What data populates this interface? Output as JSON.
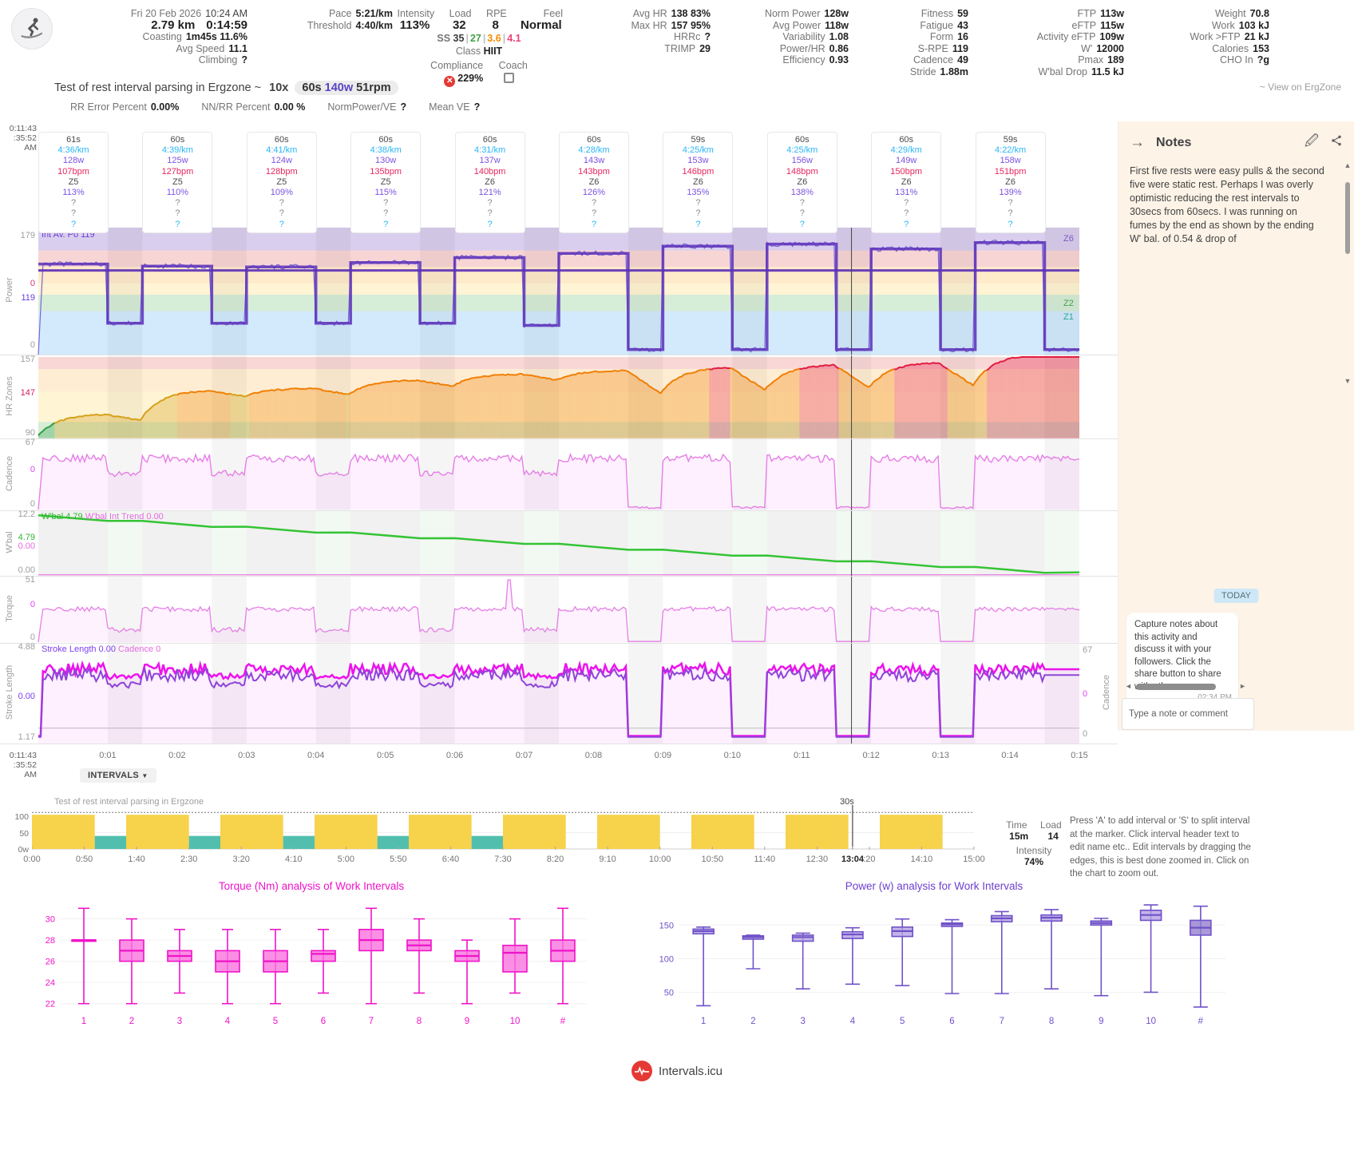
{
  "header": {
    "col1": {
      "date": "Fri 20 Feb 2026",
      "start_time": "10:24 AM",
      "distance": "2.79 km",
      "duration": "0:14:59",
      "rows": [
        {
          "label": "Coasting",
          "value": "1m45s 11.6%"
        },
        {
          "label": "Avg Speed",
          "value": "11.1"
        },
        {
          "label": "Climbing",
          "value": "?"
        }
      ]
    },
    "col2": {
      "rows": [
        {
          "label": "Pace",
          "value": "5:21/km"
        },
        {
          "label": "Threshold",
          "value": "4:40/km"
        }
      ]
    },
    "col3": {
      "metrics": [
        {
          "label": "Intensity",
          "value": "113%"
        },
        {
          "label": "Load",
          "value": "32"
        },
        {
          "label": "RPE",
          "value": "8"
        },
        {
          "label": "Feel",
          "value": "Normal"
        }
      ],
      "ss_label": "SS",
      "ss_parts": [
        {
          "value": "35",
          "color": "#3a3a3a"
        },
        {
          "value": "27",
          "color": "#43a047"
        },
        {
          "value": "3.6",
          "color": "#fb8c00"
        },
        {
          "value": "4.1",
          "color": "#ec407a"
        }
      ],
      "class_label": "Class",
      "class_value": "HIIT",
      "compliance_label": "Compliance",
      "coach_label": "Coach",
      "compliance_value": "229%"
    },
    "col4": {
      "rows": [
        {
          "label": "Avg HR",
          "value": "138 83%"
        },
        {
          "label": "Max HR",
          "value": "157 95%"
        },
        {
          "label": "HRRc",
          "value": "?"
        },
        {
          "label": "TRIMP",
          "value": "29"
        }
      ]
    },
    "col5": {
      "rows": [
        {
          "label": "Norm Power",
          "value": "128w"
        },
        {
          "label": "Avg Power",
          "value": "118w"
        },
        {
          "label": "Variability",
          "value": "1.08"
        },
        {
          "label": "Power/HR",
          "value": "0.86"
        },
        {
          "label": "Efficiency",
          "value": "0.93"
        }
      ]
    },
    "col6": {
      "rows": [
        {
          "label": "Fitness",
          "value": "59"
        },
        {
          "label": "Fatigue",
          "value": "43"
        },
        {
          "label": "Form",
          "value": "16"
        },
        {
          "label": "S-RPE",
          "value": "119"
        },
        {
          "label": "Cadence",
          "value": "49"
        },
        {
          "label": "Stride",
          "value": "1.88m"
        }
      ]
    },
    "col7": {
      "rows": [
        {
          "label": "FTP",
          "value": "113w"
        },
        {
          "label": "eFTP",
          "value": "115w"
        },
        {
          "label": "Activity eFTP",
          "value": "109w"
        },
        {
          "label": "W'",
          "value": "12000"
        },
        {
          "label": "Pmax",
          "value": "189"
        },
        {
          "label": "W'bal Drop",
          "value": "11.5 kJ"
        }
      ]
    },
    "col8": {
      "rows": [
        {
          "label": "Weight",
          "value": "70.8"
        },
        {
          "label": "Work",
          "value": "103 kJ"
        },
        {
          "label": "Work >FTP",
          "value": "21 kJ"
        },
        {
          "label": "Calories",
          "value": "153"
        },
        {
          "label": "CHO In",
          "value": "?g"
        }
      ]
    }
  },
  "title_row": {
    "title": "Test of rest interval parsing in Ergzone",
    "sep": "~",
    "reps": "10x",
    "chip_dur": "60s",
    "chip_power": "140w",
    "chip_cadence": "51rpm",
    "view_link": "~ View on ErgZone"
  },
  "stats_row": {
    "items": [
      {
        "label": "RR Error Percent",
        "value": "0.00%"
      },
      {
        "label": "NN/RR Percent",
        "value": "0.00 %"
      },
      {
        "label": "NormPower/VE",
        "value": "?"
      },
      {
        "label": "Mean VE",
        "value": "?"
      }
    ]
  },
  "intervals": [
    {
      "duration": "61s",
      "pace": "4:36/km",
      "power": "128w",
      "hr": "107bpm",
      "zone": "Z5",
      "pct": "113%",
      "u1": "?",
      "u2": "?",
      "u3": "?"
    },
    {
      "duration": "60s",
      "pace": "4:39/km",
      "power": "125w",
      "hr": "127bpm",
      "zone": "Z5",
      "pct": "110%",
      "u1": "?",
      "u2": "?",
      "u3": "?"
    },
    {
      "duration": "60s",
      "pace": "4:41/km",
      "power": "124w",
      "hr": "128bpm",
      "zone": "Z5",
      "pct": "109%",
      "u1": "?",
      "u2": "?",
      "u3": "?"
    },
    {
      "duration": "60s",
      "pace": "4:38/km",
      "power": "130w",
      "hr": "135bpm",
      "zone": "Z5",
      "pct": "115%",
      "u1": "?",
      "u2": "?",
      "u3": "?"
    },
    {
      "duration": "60s",
      "pace": "4:31/km",
      "power": "137w",
      "hr": "140bpm",
      "zone": "Z6",
      "pct": "121%",
      "u1": "?",
      "u2": "?",
      "u3": "?"
    },
    {
      "duration": "60s",
      "pace": "4:28/km",
      "power": "143w",
      "hr": "143bpm",
      "zone": "Z6",
      "pct": "126%",
      "u1": "?",
      "u2": "?",
      "u3": "?"
    },
    {
      "duration": "59s",
      "pace": "4:25/km",
      "power": "153w",
      "hr": "146bpm",
      "zone": "Z6",
      "pct": "135%",
      "u1": "?",
      "u2": "?",
      "u3": "?"
    },
    {
      "duration": "60s",
      "pace": "4:25/km",
      "power": "156w",
      "hr": "148bpm",
      "zone": "Z6",
      "pct": "138%",
      "u1": "?",
      "u2": "?",
      "u3": "?"
    },
    {
      "duration": "60s",
      "pace": "4:29/km",
      "power": "149w",
      "hr": "150bpm",
      "zone": "Z6",
      "pct": "131%",
      "u1": "?",
      "u2": "?",
      "u3": "?"
    },
    {
      "duration": "59s",
      "pace": "4:22/km",
      "power": "158w",
      "hr": "151bpm",
      "zone": "Z6",
      "pct": "139%",
      "u1": "?",
      "u2": "?",
      "u3": "?"
    }
  ],
  "main_chart": {
    "readout_line1": "0:11:43",
    "readout_line2": ":35:52 AM",
    "cursor_t": 703,
    "x_ticks": [
      "0:01",
      "0:02",
      "0:03",
      "0:04",
      "0:05",
      "0:06",
      "0:07",
      "0:08",
      "0:09",
      "0:10",
      "0:11",
      "0:12",
      "0:13",
      "0:14",
      "0:15"
    ],
    "intervals_button": "INTERVALS",
    "panels": {
      "power": {
        "label": "Power",
        "overlay": "Int Av. Po 119",
        "zone_labels": [
          "Z6",
          "Z2",
          "Z1"
        ],
        "axis": [
          {
            "t": "179",
            "c": "#9e9e9e",
            "p": 0.06
          },
          {
            "t": "0",
            "c": "#e0356e",
            "p": 0.44
          },
          {
            "t": "119",
            "c": "#6a3fd6",
            "p": 0.55
          },
          {
            "t": "0",
            "c": "#9e9e9e",
            "p": 0.92
          }
        ]
      },
      "hr": {
        "label": "HR Zones",
        "axis": [
          {
            "t": "157",
            "c": "#9e9e9e",
            "p": 0.05
          },
          {
            "t": "147",
            "c": "#d81b60",
            "p": 0.45
          },
          {
            "t": "90",
            "c": "#9e9e9e",
            "p": 0.92
          }
        ]
      },
      "cadence": {
        "label": "Cadence",
        "axis": [
          {
            "t": "67",
            "c": "#9e9e9e",
            "p": 0.04
          },
          {
            "t": "0",
            "c": "#e040fb",
            "p": 0.42
          },
          {
            "t": "0",
            "c": "#9e9e9e",
            "p": 0.9
          }
        ]
      },
      "wbal": {
        "label": "W'bal",
        "overlay_a": "W'bal 4.79",
        "overlay_b": "W'bal Int Trend 0.00",
        "axis": [
          {
            "t": "12.2",
            "c": "#9e9e9e",
            "p": 0.05
          },
          {
            "t": "4.79",
            "c": "#2fb52f",
            "p": 0.4
          },
          {
            "t": "0.00",
            "c": "#e868e0",
            "p": 0.54
          },
          {
            "t": "0.00",
            "c": "#9e9e9e",
            "p": 0.9
          }
        ]
      },
      "torque": {
        "label": "Torque",
        "axis": [
          {
            "t": "51",
            "c": "#9e9e9e",
            "p": 0.05
          },
          {
            "t": "0",
            "c": "#e040fb",
            "p": 0.42
          },
          {
            "t": "0",
            "c": "#9e9e9e",
            "p": 0.91
          }
        ]
      },
      "stroke": {
        "label": "Stroke Length",
        "overlay_a": "Stroke Length 0.00",
        "overlay_b": "Cadence 0",
        "axis": [
          {
            "t": "4.88",
            "c": "#9e9e9e",
            "p": 0.03
          },
          {
            "t": "0.00",
            "c": "#7e3ff2",
            "p": 0.52
          },
          {
            "t": "1.17",
            "c": "#9e9e9e",
            "p": 0.93
          }
        ],
        "raxis": [
          {
            "t": "67",
            "c": "#9e9e9e",
            "p": 0.06
          },
          {
            "t": "0",
            "c": "#e040fb",
            "p": 0.5
          },
          {
            "t": "0",
            "c": "#9e9e9e",
            "p": 0.9
          }
        ],
        "right_label": "Cadence"
      }
    }
  },
  "notes": {
    "header": "Notes",
    "body": "First five rests were easy pulls & the second five were static rest. Perhaps I was overly optimistic reducing the rest intervals to 30secs from 60secs. I was running on fumes by the end as shown by the ending W' bal. of 0.54 & drop of",
    "today": "TODAY",
    "bubble": "Capture notes about this activity and discuss it with your followers. Click the share button to share with others.",
    "bubble_time": "02:34 PM",
    "input_placeholder": "Type a note or comment"
  },
  "timeline": {
    "chart_label": "Test of rest interval parsing in Ergzone",
    "marker_label": "30s",
    "y_labels": [
      "100",
      "50",
      "0w"
    ],
    "x_labels": [
      {
        "t": 0,
        "text": "0:00"
      },
      {
        "t": 50,
        "text": "0:50"
      },
      {
        "t": 100,
        "text": "1:40"
      },
      {
        "t": 150,
        "text": "2:30"
      },
      {
        "t": 200,
        "text": "3:20"
      },
      {
        "t": 250,
        "text": "4:10"
      },
      {
        "t": 300,
        "text": "5:00"
      },
      {
        "t": 350,
        "text": "5:50"
      },
      {
        "t": 400,
        "text": "6:40"
      },
      {
        "t": 450,
        "text": "7:30"
      },
      {
        "t": 500,
        "text": "8:20"
      },
      {
        "t": 550,
        "text": "9:10"
      },
      {
        "t": 600,
        "text": "10:00"
      },
      {
        "t": 650,
        "text": "10:50"
      },
      {
        "t": 700,
        "text": "11:40"
      },
      {
        "t": 750,
        "text": "12:30"
      },
      {
        "t": 784,
        "text": "13:04",
        "current": true
      },
      {
        "t": 800,
        "text": ":20"
      },
      {
        "t": 850,
        "text": "14:10"
      },
      {
        "t": 900,
        "text": "15:00"
      }
    ],
    "time_label": "Time",
    "load_label": "Load",
    "time_value": "15m",
    "load_value": "14",
    "intensity_label": "Intensity",
    "intensity_value": "74%",
    "help_text": "Press 'A' to add interval or 'S' to split interval at the marker. Click interval header text to edit name etc.. Edit intervals by dragging the edges, this is best done zoomed in. Click on the chart to zoom out."
  },
  "footer": {
    "brand": "Intervals.icu"
  },
  "chart_data": [
    {
      "type": "line",
      "title": "Power trace",
      "ylim": [
        0,
        179
      ],
      "total_s": 900,
      "work_dur_s": 60,
      "rest_dur_s": 30,
      "work_power_w": [
        128,
        125,
        124,
        130,
        137,
        143,
        153,
        156,
        149,
        158
      ],
      "rest_power_w": [
        45,
        45,
        45,
        45,
        42,
        8,
        8,
        8,
        8
      ],
      "interval_avg_w": 119
    },
    {
      "type": "line",
      "title": "Heart rate trace",
      "ylim": [
        90,
        157
      ],
      "start_bpm": 90,
      "work_peak_bpm": [
        107,
        127,
        128,
        135,
        140,
        143,
        146,
        148,
        150,
        157
      ]
    },
    {
      "type": "line",
      "title": "Cadence trace",
      "ylim": [
        0,
        67
      ],
      "work_rpm": 51,
      "rest_rpm_early": 36,
      "rest_rpm_late": 1
    },
    {
      "type": "line",
      "title": "W'bal trace",
      "ylim": [
        0,
        12.2
      ],
      "start_kj": 12.0,
      "work_drop_kj": 1.17,
      "rest_gain_kj": 0.02,
      "end_kj": 0.54
    },
    {
      "type": "line",
      "title": "Torque trace",
      "ylim": [
        0,
        51
      ],
      "work_nm": 27,
      "rest_nm_early": 10,
      "rest_nm_late": 0.5,
      "spike_nm": 51,
      "spike_at_s": 407
    },
    {
      "type": "line",
      "title": "Stroke length trace",
      "ylim": [
        1.0,
        5.0
      ],
      "work_m": 4.05,
      "rest_m_early": 3.75,
      "rest_m_late": 1.22,
      "cadence_work_rpm": 47,
      "cadence_rest_early_rpm": 40,
      "cadence_rest_late_rpm": 3,
      "cadence_ylim": [
        0,
        67
      ]
    },
    {
      "type": "bar",
      "title": "Interval timeline",
      "ylim": [
        0,
        125
      ],
      "target_w": 112,
      "work_w": 105,
      "rest_w_early": 40,
      "rest_w_late": 0
    },
    {
      "type": "box",
      "title": "Torque (Nm) analysis of Work Intervals",
      "categories": [
        "1",
        "2",
        "3",
        "4",
        "5",
        "6",
        "7",
        "8",
        "9",
        "10",
        "#"
      ],
      "format": "[low, q1, median, q3, high]",
      "values": [
        [
          22,
          28,
          28,
          28,
          31
        ],
        [
          22,
          26,
          27,
          28,
          30
        ],
        [
          23,
          26,
          26.5,
          27,
          29
        ],
        [
          22,
          25,
          26,
          27,
          29
        ],
        [
          22,
          25,
          26,
          27,
          29
        ],
        [
          23,
          26,
          26.7,
          27,
          29
        ],
        [
          22,
          27,
          28,
          29,
          31
        ],
        [
          23,
          27,
          27.5,
          28,
          30
        ],
        [
          22,
          26,
          26.5,
          27,
          28
        ],
        [
          23,
          25,
          26.8,
          27.5,
          30
        ],
        [
          22,
          26,
          27,
          28,
          31
        ]
      ],
      "yticks": [
        22,
        24,
        26,
        28,
        30
      ],
      "ylim": [
        21.3,
        31.7
      ]
    },
    {
      "type": "box",
      "title": "Power (w) analysis for Work Intervals",
      "categories": [
        "1",
        "2",
        "3",
        "4",
        "5",
        "6",
        "7",
        "8",
        "9",
        "10",
        "#"
      ],
      "format": "[low, q1, median, q3, high]",
      "values": [
        [
          30,
          137,
          141,
          144,
          147
        ],
        [
          85,
          129,
          132,
          134,
          135
        ],
        [
          55,
          126,
          132,
          135,
          138
        ],
        [
          62,
          130,
          136,
          140,
          146
        ],
        [
          60,
          133,
          141,
          147,
          159
        ],
        [
          48,
          148,
          151,
          153,
          158
        ],
        [
          48,
          155,
          160,
          164,
          170
        ],
        [
          55,
          156,
          161,
          165,
          173
        ],
        [
          45,
          150,
          153,
          156,
          160
        ],
        [
          50,
          157,
          165,
          172,
          180
        ],
        [
          28,
          135,
          146,
          157,
          178
        ]
      ],
      "yticks": [
        50,
        100,
        150
      ],
      "ylim": [
        22,
        186
      ]
    }
  ],
  "colors": {
    "power_line": "#7668d6",
    "power_step": "#5b2fb8",
    "pace_cyan": "#29b6f6",
    "hr_red": "#e2183d",
    "hr_orange": "#f07d00",
    "hr_yellow": "#d4a017",
    "hr_green": "#2e9e44",
    "cadence_magenta": "#e57fe5",
    "wbal_green": "#35c435",
    "trend_magenta": "#ea5fe0",
    "stroke_magenta": "#ec13ec",
    "stroke_purple": "#8e44d8",
    "bar_yellow": "#f7d24b",
    "bar_teal": "#52bfae",
    "torque_box": "#f013c9",
    "torque_fill": "#f973df",
    "power_box": "#7052c8",
    "power_fill": "#b4a1e4",
    "brand_red": "#e53935"
  }
}
